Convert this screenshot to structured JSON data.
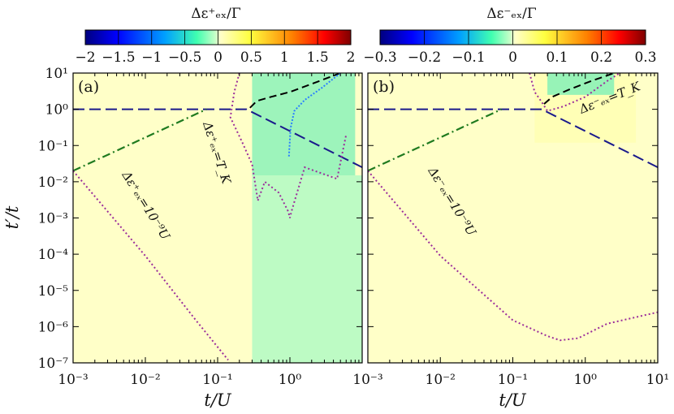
{
  "chart_data": [
    {
      "type": "heatmap",
      "panel_label": "(a)",
      "colorbar": {
        "title": "Δε⁺ₑₓ/Γ",
        "ticks": [
          "−2",
          "−1.5",
          "−1",
          "−0.5",
          "0",
          "0.5",
          "1",
          "1.5",
          "2"
        ],
        "range": [
          -2,
          2
        ],
        "colormap": [
          "#00007f",
          "#0000ff",
          "#00a0ff",
          "#40ffb0",
          "#c8ffc8",
          "#ffffc8",
          "#ffff40",
          "#ff8000",
          "#ff0000",
          "#7f0000"
        ]
      },
      "xlabel": "t/U",
      "ylabel": "t′/t",
      "xscale": "log",
      "yscale": "log",
      "xlim": [
        0.001,
        10
      ],
      "ylim": [
        1e-07,
        10
      ],
      "xticks": [
        "10⁻³",
        "10⁻²",
        "10⁻¹",
        "10⁰"
      ],
      "yticks": [
        "10¹",
        "10⁰",
        "10⁻¹",
        "10⁻²",
        "10⁻³",
        "10⁻⁴",
        "10⁻⁵",
        "10⁻⁶",
        "10⁻⁷"
      ],
      "regions": [
        {
          "name": "green-sheet",
          "value": -0.2,
          "x": [
            0.3,
            10
          ],
          "y": [
            1e-07,
            0.015
          ]
        },
        {
          "name": "green-wedge",
          "value": -0.6,
          "x": [
            0.3,
            8
          ],
          "y": [
            0.015,
            10
          ]
        }
      ],
      "curves": [
        {
          "style": "blue-dashed",
          "x": [
            0.001,
            0.25,
            10
          ],
          "y": [
            1,
            1,
            0.025
          ]
        },
        {
          "style": "green-dashdot",
          "x": [
            0.001,
            0.07
          ],
          "y": [
            0.02,
            1
          ]
        },
        {
          "style": "magenta-dotted",
          "label": "Δε⁺ₑₓ=10⁻⁹U",
          "x": [
            0.001,
            0.01,
            0.05,
            0.14
          ],
          "y": [
            0.02,
            9e-05,
            1.5e-06,
            1.2e-07
          ]
        },
        {
          "style": "magenta-dotted",
          "label": "Δε⁺ₑₓ=T_K",
          "x": [
            0.2,
            0.17,
            0.15,
            0.22,
            0.3,
            0.36,
            0.45,
            0.7,
            0.95,
            1.0,
            1.05,
            1.6,
            4.5,
            6
          ],
          "y": [
            10,
            3,
            0.6,
            0.12,
            0.03,
            0.003,
            0.01,
            0.005,
            0.0015,
            0.001,
            0.0015,
            0.025,
            0.012,
            0.2
          ]
        },
        {
          "style": "black-dashed",
          "x": [
            0.28,
            0.35,
            0.55,
            1,
            2,
            5
          ],
          "y": [
            1.1,
            1.7,
            2.2,
            3,
            5,
            10
          ]
        },
        {
          "style": "blue-dotted",
          "x": [
            0.97,
            1.02,
            1.15,
            1.6,
            2.8,
            5
          ],
          "y": [
            0.05,
            0.3,
            0.9,
            1.8,
            4,
            10
          ]
        }
      ]
    },
    {
      "type": "heatmap",
      "panel_label": "(b)",
      "colorbar": {
        "title": "Δε⁻ₑₓ/Γ",
        "ticks": [
          "−0.3",
          "−0.2",
          "−0.1",
          "0",
          "0.1",
          "0.2",
          "0.3"
        ],
        "range": [
          -0.3,
          0.3
        ],
        "colormap": [
          "#00007f",
          "#0000ff",
          "#00a0ff",
          "#40ffb0",
          "#c8ffc8",
          "#ffffc8",
          "#ffff40",
          "#ff8000",
          "#ff0000",
          "#7f0000"
        ]
      },
      "xlabel": "t/U",
      "xscale": "log",
      "yscale": "log",
      "xlim": [
        0.001,
        10
      ],
      "ylim": [
        1e-07,
        10
      ],
      "xticks": [
        "10⁻³",
        "10⁻²",
        "10⁻¹",
        "10⁰",
        "10¹"
      ],
      "regions": [
        {
          "name": "yellow-halo",
          "value": 0.03,
          "x": [
            0.2,
            5
          ],
          "y": [
            0.12,
            10
          ]
        },
        {
          "name": "green-cap",
          "value": -0.1,
          "x": [
            0.3,
            2.5
          ],
          "y": [
            2.5,
            10
          ]
        }
      ],
      "curves": [
        {
          "style": "blue-dashed",
          "x": [
            0.001,
            0.25,
            10
          ],
          "y": [
            1,
            1,
            0.025
          ]
        },
        {
          "style": "green-dashdot",
          "x": [
            0.001,
            0.07
          ],
          "y": [
            0.02,
            1
          ]
        },
        {
          "style": "magenta-dotted",
          "label": "Δε⁻ₑₓ=10⁻⁹U",
          "x": [
            0.001,
            0.01,
            0.1,
            0.3,
            0.45,
            0.8,
            2,
            10
          ],
          "y": [
            0.02,
            9e-05,
            1.5e-06,
            5.5e-07,
            4.2e-07,
            4.8e-07,
            1.2e-06,
            2.5e-06
          ]
        },
        {
          "style": "magenta-dotted",
          "label": "Δε⁻ₑₓ=T_K",
          "x": [
            0.17,
            0.2,
            0.25,
            0.3,
            0.5,
            1,
            2,
            3
          ],
          "y": [
            10,
            3,
            1.6,
            0.9,
            1.2,
            2.2,
            6,
            10
          ]
        },
        {
          "style": "black-dashed",
          "x": [
            0.27,
            0.35,
            0.6,
            1.2,
            2.5
          ],
          "y": [
            1.4,
            2.2,
            3.5,
            6,
            10
          ]
        }
      ]
    }
  ]
}
